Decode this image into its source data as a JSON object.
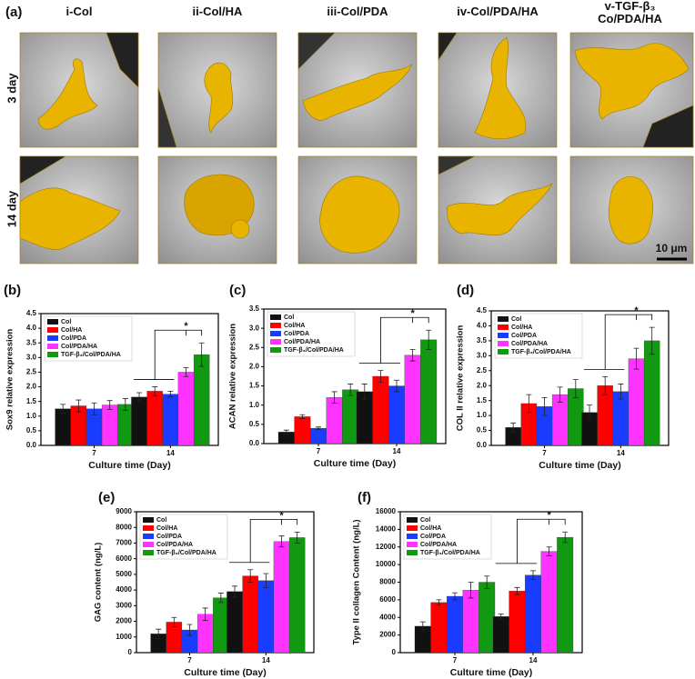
{
  "sem_panel": {
    "label": "(a)",
    "columns": [
      "i-Col",
      "ii-Col/HA",
      "iii-Col/PDA",
      "iv-Col/PDA/HA",
      "v-TGF-β₃ Co/PDA/HA"
    ],
    "rows": [
      "3 day",
      "14 day"
    ],
    "scale_bar": "10 μm"
  },
  "chart_data": [
    {
      "type": "bar",
      "label": "(b)",
      "ylabel": "Sox9 relative expression",
      "xlabel": "Culture time (Day)",
      "annotation": "*",
      "categories": [
        "7",
        "14"
      ],
      "ylim": [
        0,
        4.5
      ],
      "yticks": [
        {
          "value": 0,
          "label": "0.0"
        },
        0.5,
        {
          "value": 1,
          "label": "1.0"
        },
        1.5,
        {
          "value": 2,
          "label": "2.0"
        },
        2.5,
        {
          "value": 3,
          "label": "3.0"
        },
        3.5,
        {
          "value": 4,
          "label": "4.0"
        },
        4.5
      ],
      "series": [
        {
          "name": "Col",
          "color": "#111111",
          "values": [
            1.25,
            1.65
          ],
          "errors": [
            0.15,
            0.15
          ]
        },
        {
          "name": "Col/HA",
          "color": "#ff0000",
          "values": [
            1.35,
            1.85
          ],
          "errors": [
            0.2,
            0.15
          ]
        },
        {
          "name": "Col/PDA",
          "color": "#1a3cff",
          "values": [
            1.25,
            1.75
          ],
          "errors": [
            0.2,
            0.1
          ]
        },
        {
          "name": "Col/PDA/HA",
          "color": "#ff33ff",
          "values": [
            1.38,
            2.5
          ],
          "errors": [
            0.15,
            0.15
          ]
        },
        {
          "name": "TGF-β₃/Col/PDA/HA",
          "color": "#119911",
          "values": [
            1.4,
            3.1
          ],
          "errors": [
            0.2,
            0.4
          ]
        }
      ]
    },
    {
      "type": "bar",
      "label": "(c)",
      "ylabel": "ACAN relative expression",
      "xlabel": "Culture time (Day)",
      "annotation": "*",
      "categories": [
        "7",
        "14"
      ],
      "ylim": [
        0,
        3.5
      ],
      "yticks": [
        {
          "value": 0,
          "label": "0.0"
        },
        0.5,
        {
          "value": 1,
          "label": "1.0"
        },
        1.5,
        {
          "value": 2,
          "label": "2.0"
        },
        2.5,
        {
          "value": 3,
          "label": "3.0"
        },
        3.5
      ],
      "series": [
        {
          "name": "Col",
          "color": "#111111",
          "values": [
            0.3,
            1.35
          ],
          "errors": [
            0.05,
            0.2
          ]
        },
        {
          "name": "Col/HA",
          "color": "#ff0000",
          "values": [
            0.7,
            1.75
          ],
          "errors": [
            0.05,
            0.15
          ]
        },
        {
          "name": "Col/PDA",
          "color": "#1a3cff",
          "values": [
            0.4,
            1.5
          ],
          "errors": [
            0.03,
            0.15
          ]
        },
        {
          "name": "Col/PDA/HA",
          "color": "#ff33ff",
          "values": [
            1.2,
            2.3
          ],
          "errors": [
            0.15,
            0.15
          ]
        },
        {
          "name": "TGF-β₃/Col/PDA/HA",
          "color": "#119911",
          "values": [
            1.4,
            2.7
          ],
          "errors": [
            0.15,
            0.25
          ]
        }
      ]
    },
    {
      "type": "bar",
      "label": "(d)",
      "ylabel": "COL II relative expression",
      "xlabel": "Culture time (Day)",
      "annotation": "*",
      "categories": [
        "7",
        "14"
      ],
      "ylim": [
        0,
        4.5
      ],
      "yticks": [
        {
          "value": 0,
          "label": "0.0"
        },
        0.5,
        {
          "value": 1,
          "label": "1.0"
        },
        1.5,
        {
          "value": 2,
          "label": "2.0"
        },
        2.5,
        {
          "value": 3,
          "label": "3.0"
        },
        3.5,
        {
          "value": 4,
          "label": "4.0"
        },
        4.5
      ],
      "series": [
        {
          "name": "Col",
          "color": "#111111",
          "values": [
            0.6,
            1.1
          ],
          "errors": [
            0.15,
            0.25
          ]
        },
        {
          "name": "Col/HA",
          "color": "#ff0000",
          "values": [
            1.4,
            2.0
          ],
          "errors": [
            0.3,
            0.3
          ]
        },
        {
          "name": "Col/PDA",
          "color": "#1a3cff",
          "values": [
            1.3,
            1.8
          ],
          "errors": [
            0.3,
            0.25
          ]
        },
        {
          "name": "Col/PDA/HA",
          "color": "#ff33ff",
          "values": [
            1.7,
            2.9
          ],
          "errors": [
            0.25,
            0.35
          ]
        },
        {
          "name": "TGF-β₃/Col/PDA/HA",
          "color": "#119911",
          "values": [
            1.9,
            3.5
          ],
          "errors": [
            0.3,
            0.45
          ]
        }
      ]
    },
    {
      "type": "bar",
      "label": "(e)",
      "ylabel": "GAG content (ng/L)",
      "xlabel": "Culture time (Day)",
      "annotation": "*",
      "categories": [
        "7",
        "14"
      ],
      "ylim": [
        0,
        9000
      ],
      "yticks": [
        0,
        1000,
        2000,
        3000,
        4000,
        5000,
        6000,
        7000,
        8000,
        9000
      ],
      "series": [
        {
          "name": "Col",
          "color": "#111111",
          "values": [
            1200,
            3900
          ],
          "errors": [
            300,
            350
          ]
        },
        {
          "name": "Col/HA",
          "color": "#ff0000",
          "values": [
            1950,
            4900
          ],
          "errors": [
            300,
            400
          ]
        },
        {
          "name": "Col/PDA",
          "color": "#1a3cff",
          "values": [
            1450,
            4600
          ],
          "errors": [
            350,
            450
          ]
        },
        {
          "name": "Col/PDA/HA",
          "color": "#ff33ff",
          "values": [
            2450,
            7100
          ],
          "errors": [
            400,
            350
          ]
        },
        {
          "name": "TGF-β₃/Col/PDA/HA",
          "color": "#119911",
          "values": [
            3500,
            7350
          ],
          "errors": [
            300,
            350
          ]
        }
      ]
    },
    {
      "type": "bar",
      "label": "(f)",
      "ylabel": "Type II collagen Content (ng/L)",
      "xlabel": "Culture time (Day)",
      "annotation": "*",
      "categories": [
        "7",
        "14"
      ],
      "ylim": [
        0,
        16000
      ],
      "yticks": [
        0,
        2000,
        4000,
        6000,
        8000,
        10000,
        12000,
        14000,
        16000
      ],
      "series": [
        {
          "name": "Col",
          "color": "#111111",
          "values": [
            3000,
            4100
          ],
          "errors": [
            500,
            300
          ]
        },
        {
          "name": "Col/HA",
          "color": "#ff0000",
          "values": [
            5700,
            7000
          ],
          "errors": [
            300,
            400
          ]
        },
        {
          "name": "Col/PDA",
          "color": "#1a3cff",
          "values": [
            6400,
            8800
          ],
          "errors": [
            400,
            500
          ]
        },
        {
          "name": "Col/PDA/HA",
          "color": "#ff33ff",
          "values": [
            7100,
            11500
          ],
          "errors": [
            900,
            500
          ]
        },
        {
          "name": "TGF-β₃/Col/PDA/HA",
          "color": "#119911",
          "values": [
            8000,
            13100
          ],
          "errors": [
            700,
            600
          ]
        }
      ]
    }
  ]
}
